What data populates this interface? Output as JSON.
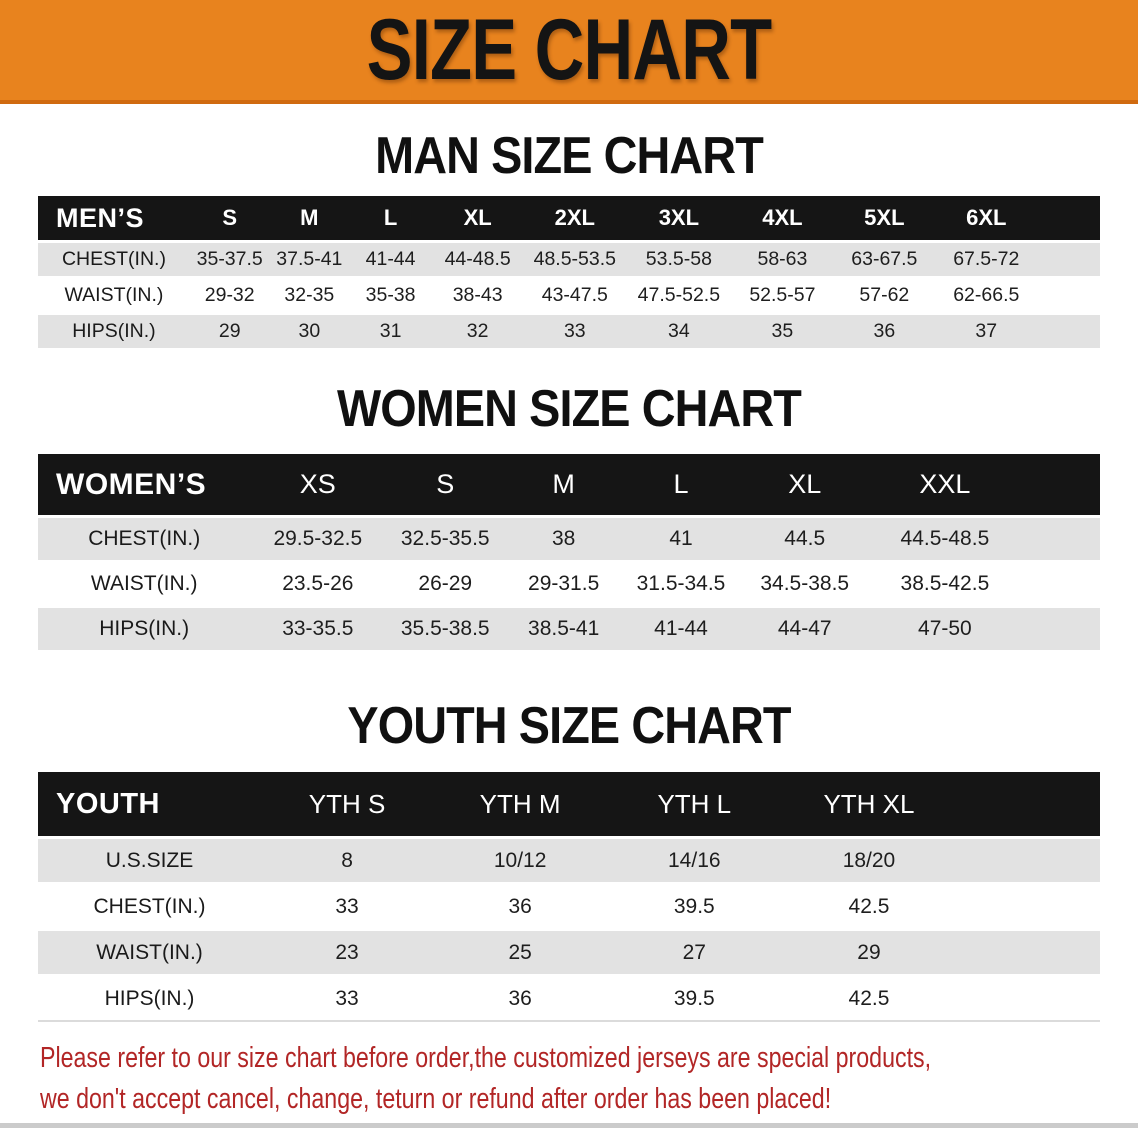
{
  "banner": {
    "title": "SIZE CHART",
    "bg_color": "#E8831E",
    "border_color": "#D06A0F",
    "text_color": "#141414"
  },
  "colors": {
    "header_bar": "#151515",
    "row_stripe": "#E2E2E2"
  },
  "sections": [
    {
      "heading": "MAN SIZE CHART",
      "table": {
        "header": [
          "MEN’S",
          "S",
          "M",
          "L",
          "XL",
          "2XL",
          "3XL",
          "4XL",
          "5XL",
          "6XL"
        ],
        "rows": [
          {
            "label": "CHEST(IN.)",
            "values": [
              "35-37.5",
              "37.5-41",
              "41-44",
              "44-48.5",
              "48.5-53.5",
              "53.5-58",
              "58-63",
              "63-67.5",
              "67.5-72"
            ]
          },
          {
            "label": "WAIST(IN.)",
            "values": [
              "29-32",
              "32-35",
              "35-38",
              "38-43",
              "43-47.5",
              "47.5-52.5",
              "52.5-57",
              "57-62",
              "62-66.5"
            ]
          },
          {
            "label": "HIPS(IN.)",
            "values": [
              "29",
              "30",
              "31",
              "32",
              "33",
              "34",
              "35",
              "36",
              "37"
            ]
          }
        ]
      }
    },
    {
      "heading": "WOMEN SIZE CHART",
      "table": {
        "header": [
          "WOMEN’S",
          "XS",
          "S",
          "M",
          "L",
          "XL",
          "XXL"
        ],
        "rows": [
          {
            "label": "CHEST(IN.)",
            "values": [
              "29.5-32.5",
              "32.5-35.5",
              "38",
              "41",
              "44.5",
              "44.5-48.5"
            ]
          },
          {
            "label": "WAIST(IN.)",
            "values": [
              "23.5-26",
              "26-29",
              "29-31.5",
              "31.5-34.5",
              "34.5-38.5",
              "38.5-42.5"
            ]
          },
          {
            "label": "HIPS(IN.)",
            "values": [
              "33-35.5",
              "35.5-38.5",
              "38.5-41",
              "41-44",
              "44-47",
              "47-50"
            ]
          }
        ]
      }
    },
    {
      "heading": "YOUTH SIZE CHART",
      "table": {
        "header": [
          "YOUTH",
          "YTH S",
          "YTH M",
          "YTH L",
          "YTH XL"
        ],
        "rows": [
          {
            "label": "U.S.SIZE",
            "values": [
              "8",
              "10/12",
              "14/16",
              "18/20"
            ]
          },
          {
            "label": "CHEST(IN.)",
            "values": [
              "33",
              "36",
              "39.5",
              "42.5"
            ]
          },
          {
            "label": "WAIST(IN.)",
            "values": [
              "23",
              "25",
              "27",
              "29"
            ]
          },
          {
            "label": "HIPS(IN.)",
            "values": [
              "33",
              "36",
              "39.5",
              "42.5"
            ]
          }
        ]
      }
    }
  ],
  "disclaimer": {
    "line1": "Please refer to our size chart before order,the customized jerseys are special products,",
    "line2": "we don't accept cancel, change, teturn or refund after order has been placed!",
    "color": "#B22626"
  }
}
